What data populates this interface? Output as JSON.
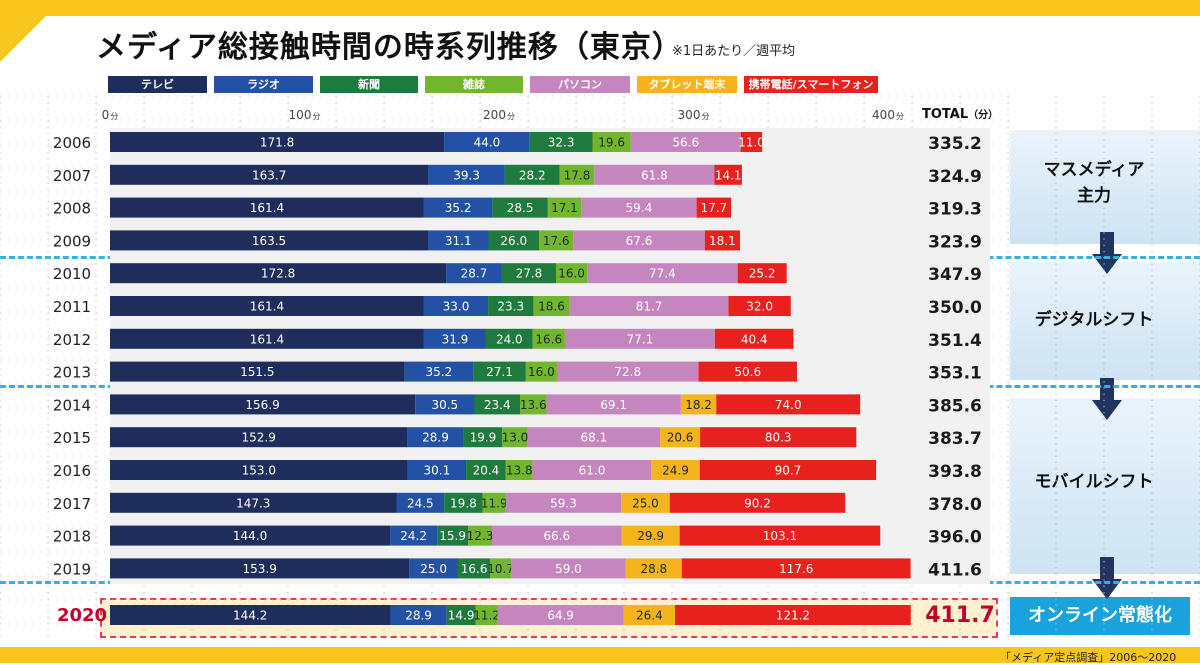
{
  "title": "メディア総接触時間の時系列推移（東京）",
  "note": "※1日あたり／週平均",
  "total_header": "TOTAL",
  "total_unit": "（分）",
  "source": "「メディア定点調査」2006〜2020",
  "phases": [
    {
      "label_line1": "マスメディア",
      "label_line2": "主力"
    },
    {
      "label_line1": "デジタルシフト",
      "label_line2": ""
    },
    {
      "label_line1": "モバイルシフト",
      "label_line2": ""
    },
    {
      "label_line1": "オンライン常態化",
      "label_line2": ""
    }
  ],
  "chart_data": {
    "type": "bar",
    "orientation": "horizontal",
    "stacked": true,
    "xlim": [
      0,
      400
    ],
    "x_ticks": [
      0,
      100,
      200,
      300,
      400
    ],
    "x_tick_unit": "分",
    "legend_position": "top",
    "categories": [
      "2006",
      "2007",
      "2008",
      "2009",
      "2010",
      "2011",
      "2012",
      "2013",
      "2014",
      "2015",
      "2016",
      "2017",
      "2018",
      "2019",
      "2020"
    ],
    "series": [
      {
        "name": "テレビ",
        "color": "#1f2d5c",
        "values": [
          171.8,
          163.7,
          161.4,
          163.5,
          172.8,
          161.4,
          161.4,
          151.5,
          156.9,
          152.9,
          153.0,
          147.3,
          144.0,
          153.9,
          144.2
        ]
      },
      {
        "name": "ラジオ",
        "color": "#2352a4",
        "values": [
          44.0,
          39.3,
          35.2,
          31.1,
          28.7,
          33.0,
          31.9,
          35.2,
          30.5,
          28.9,
          30.1,
          24.5,
          24.2,
          25.0,
          28.9
        ]
      },
      {
        "name": "新聞",
        "color": "#1e7a3d",
        "values": [
          32.3,
          28.2,
          28.5,
          26.0,
          27.8,
          23.3,
          24.0,
          27.1,
          23.4,
          19.9,
          20.4,
          19.8,
          15.9,
          16.6,
          14.9
        ]
      },
      {
        "name": "雑誌",
        "color": "#72b52f",
        "values": [
          19.6,
          17.8,
          17.1,
          17.6,
          16.0,
          18.6,
          16.6,
          16.0,
          13.6,
          13.0,
          13.8,
          11.9,
          12.3,
          10.7,
          11.2
        ]
      },
      {
        "name": "パソコン",
        "color": "#c586c0",
        "values": [
          56.6,
          61.8,
          59.4,
          67.6,
          77.4,
          81.7,
          77.1,
          72.8,
          69.1,
          68.1,
          61.0,
          59.3,
          66.6,
          59.0,
          64.9
        ]
      },
      {
        "name": "タブレット端末",
        "color": "#f5b41b",
        "values": [
          null,
          null,
          null,
          null,
          null,
          null,
          null,
          null,
          18.2,
          20.6,
          24.9,
          25.0,
          29.9,
          28.8,
          26.4
        ]
      },
      {
        "name": "携帯電話/スマートフォン",
        "color": "#e8211f",
        "values": [
          11.0,
          14.1,
          17.7,
          18.1,
          25.2,
          32.0,
          40.4,
          50.6,
          74.0,
          80.3,
          90.7,
          90.2,
          103.1,
          117.6,
          121.2
        ]
      }
    ],
    "totals": [
      "335.2",
      "324.9",
      "319.3",
      "323.9",
      "347.9",
      "350.0",
      "351.4",
      "353.1",
      "385.6",
      "383.7",
      "393.8",
      "378.0",
      "396.0",
      "411.6",
      "411.7"
    ],
    "highlight_year": "2020"
  }
}
